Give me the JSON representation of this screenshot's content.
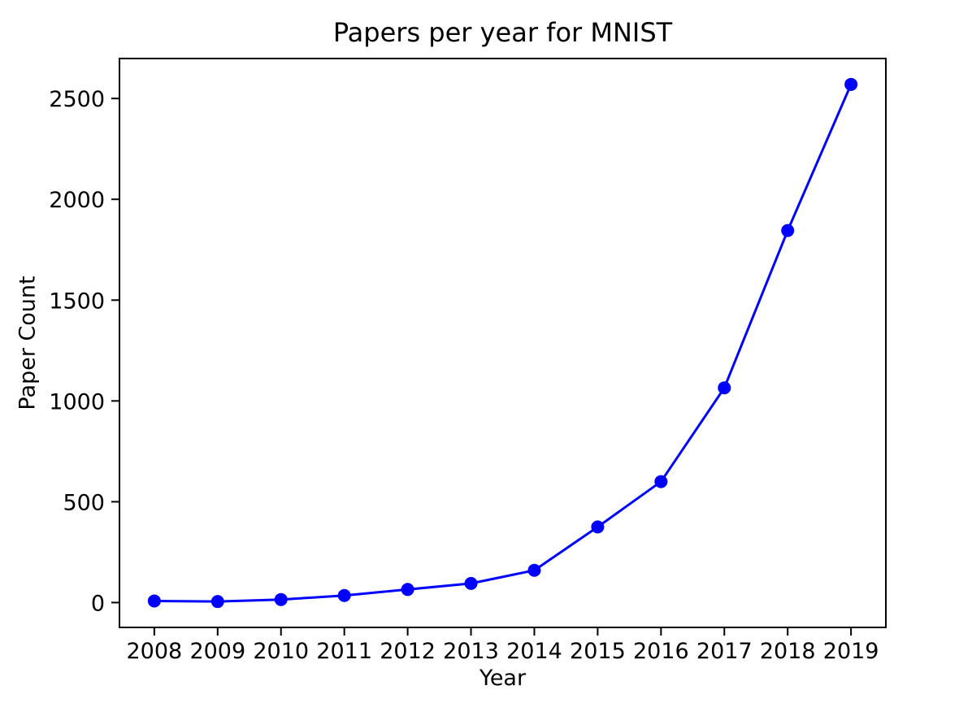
{
  "chart_data": {
    "type": "line",
    "title": "Papers per year for MNIST",
    "xlabel": "Year",
    "ylabel": "Paper Count",
    "x": [
      2008,
      2009,
      2010,
      2011,
      2012,
      2013,
      2014,
      2015,
      2016,
      2017,
      2018,
      2019
    ],
    "values": [
      8,
      5,
      15,
      35,
      65,
      95,
      160,
      375,
      600,
      1065,
      1845,
      2570
    ],
    "xtick_labels": [
      "2008",
      "2009",
      "2010",
      "2011",
      "2012",
      "2013",
      "2014",
      "2015",
      "2016",
      "2017",
      "2018",
      "2019"
    ],
    "yticks": [
      0,
      500,
      1000,
      1500,
      2000,
      2500
    ],
    "ytick_labels": [
      "0",
      "500",
      "1000",
      "1500",
      "2000",
      "2500"
    ],
    "xlim": [
      2007.45,
      2019.55
    ],
    "ylim": [
      -123.25,
      2698.25
    ],
    "grid": false,
    "legend": false,
    "line_color": "#0000ff",
    "marker": "circle",
    "marker_color": "#0000ff",
    "axis_color": "#000000",
    "text_color": "#000000",
    "background_color": "#ffffff"
  }
}
